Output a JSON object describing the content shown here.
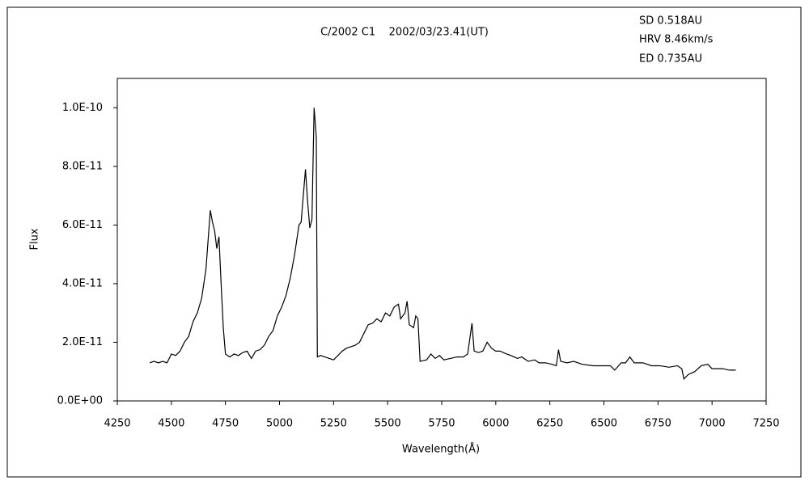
{
  "chart_data": {
    "type": "line",
    "title": "C/2002 C1    2002/03/23.41(UT)",
    "annotations": [
      "SD 0.518AU",
      "HRV 8.46km/s",
      "ED 0.735AU"
    ],
    "x_label": "Wavelength(Å)",
    "y_label": "Flux",
    "color": "#000000",
    "grid": false,
    "xlim": [
      4250,
      7250
    ],
    "xticks": [
      4250,
      4500,
      4750,
      5000,
      5250,
      5500,
      5750,
      6000,
      6250,
      6500,
      6750,
      7000,
      7250
    ],
    "ylim": [
      0,
      1.1e-10
    ],
    "yticks": [
      {
        "value": 0,
        "label": "0.0E+00"
      },
      {
        "value": 2e-11,
        "label": "2.0E-11"
      },
      {
        "value": 4e-11,
        "label": "4.0E-11"
      },
      {
        "value": 6e-11,
        "label": "6.0E-11"
      },
      {
        "value": 8e-11,
        "label": "8.0E-11"
      },
      {
        "value": 1e-10,
        "label": "1.0E-10"
      }
    ],
    "x": [
      4400,
      4420,
      4440,
      4460,
      4480,
      4500,
      4520,
      4540,
      4560,
      4580,
      4600,
      4620,
      4640,
      4660,
      4670,
      4680,
      4690,
      4700,
      4710,
      4720,
      4730,
      4740,
      4750,
      4770,
      4790,
      4810,
      4830,
      4850,
      4870,
      4890,
      4910,
      4930,
      4950,
      4970,
      4990,
      5010,
      5030,
      5050,
      5070,
      5090,
      5100,
      5110,
      5120,
      5130,
      5140,
      5150,
      5160,
      5170,
      5175,
      5190,
      5210,
      5230,
      5250,
      5270,
      5290,
      5310,
      5330,
      5350,
      5370,
      5390,
      5410,
      5430,
      5450,
      5470,
      5490,
      5510,
      5530,
      5550,
      5560,
      5580,
      5590,
      5600,
      5620,
      5630,
      5640,
      5650,
      5680,
      5700,
      5720,
      5740,
      5760,
      5790,
      5820,
      5850,
      5870,
      5890,
      5900,
      5920,
      5940,
      5960,
      5980,
      6000,
      6020,
      6050,
      6070,
      6100,
      6120,
      6150,
      6180,
      6200,
      6230,
      6260,
      6280,
      6290,
      6300,
      6330,
      6360,
      6400,
      6450,
      6500,
      6530,
      6550,
      6580,
      6600,
      6620,
      6640,
      6680,
      6720,
      6760,
      6800,
      6840,
      6860,
      6870,
      6890,
      6920,
      6950,
      6980,
      7000,
      7050,
      7080,
      7110
    ],
    "values": [
      1.3e-11,
      1.35e-11,
      1.3e-11,
      1.35e-11,
      1.3e-11,
      1.6e-11,
      1.55e-11,
      1.7e-11,
      2e-11,
      2.2e-11,
      2.7e-11,
      3e-11,
      3.5e-11,
      4.5e-11,
      5.5e-11,
      6.5e-11,
      6.1e-11,
      5.8e-11,
      5.2e-11,
      5.6e-11,
      4e-11,
      2.5e-11,
      1.6e-11,
      1.5e-11,
      1.6e-11,
      1.55e-11,
      1.65e-11,
      1.7e-11,
      1.45e-11,
      1.7e-11,
      1.75e-11,
      1.9e-11,
      2.2e-11,
      2.4e-11,
      2.9e-11,
      3.2e-11,
      3.6e-11,
      4.2e-11,
      5e-11,
      6e-11,
      6.1e-11,
      7e-11,
      7.9e-11,
      6.8e-11,
      5.9e-11,
      6.2e-11,
      1e-10,
      9e-11,
      1.5e-11,
      1.55e-11,
      1.5e-11,
      1.45e-11,
      1.4e-11,
      1.55e-11,
      1.7e-11,
      1.8e-11,
      1.85e-11,
      1.9e-11,
      2e-11,
      2.3e-11,
      2.6e-11,
      2.65e-11,
      2.8e-11,
      2.7e-11,
      3e-11,
      2.9e-11,
      3.2e-11,
      3.3e-11,
      2.8e-11,
      3e-11,
      3.4e-11,
      2.6e-11,
      2.5e-11,
      2.9e-11,
      2.8e-11,
      1.35e-11,
      1.4e-11,
      1.6e-11,
      1.45e-11,
      1.55e-11,
      1.4e-11,
      1.45e-11,
      1.5e-11,
      1.5e-11,
      1.6e-11,
      2.65e-11,
      1.7e-11,
      1.65e-11,
      1.7e-11,
      2e-11,
      1.8e-11,
      1.7e-11,
      1.7e-11,
      1.6e-11,
      1.55e-11,
      1.45e-11,
      1.5e-11,
      1.35e-11,
      1.4e-11,
      1.3e-11,
      1.3e-11,
      1.25e-11,
      1.2e-11,
      1.75e-11,
      1.35e-11,
      1.3e-11,
      1.35e-11,
      1.25e-11,
      1.2e-11,
      1.2e-11,
      1.2e-11,
      1.05e-11,
      1.3e-11,
      1.3e-11,
      1.5e-11,
      1.3e-11,
      1.3e-11,
      1.2e-11,
      1.2e-11,
      1.15e-11,
      1.2e-11,
      1.1e-11,
      7.5e-12,
      9e-12,
      1e-11,
      1.2e-11,
      1.25e-11,
      1.1e-11,
      1.1e-11,
      1.05e-11,
      1.05e-11
    ]
  }
}
